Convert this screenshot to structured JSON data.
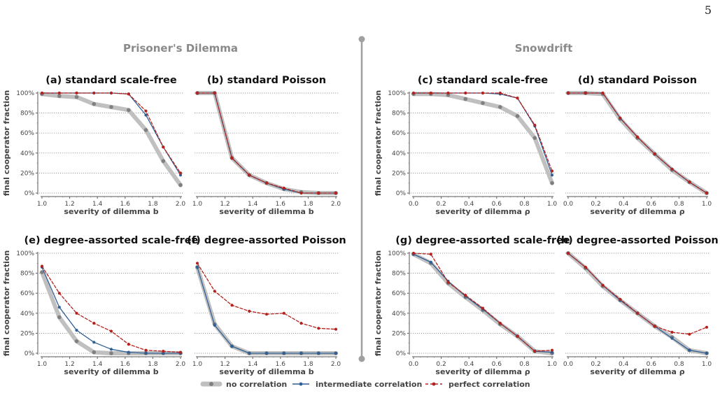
{
  "page_number": "5",
  "group_titles": [
    "Prisoner's Dilemma",
    "Snowdrift"
  ],
  "legend": {
    "no_correlation": "no correlation",
    "intermediate_correlation": "intermediate correlation",
    "perfect_correlation": "perfect correlation"
  },
  "colors": {
    "no_correlation": "#c0c0c0",
    "no_correlation_marker": "#808080",
    "intermediate_correlation": "#2e5f96",
    "perfect_correlation": "#b5221d",
    "divider": "#a0a0a0"
  },
  "chart_data": [
    {
      "id": "a",
      "type": "line",
      "title": "(a) standard scale-free",
      "xlabel": "severity of dilemma b",
      "ylabel": "final cooperator fraction",
      "xlim": [
        1.0,
        2.0
      ],
      "ylim": [
        0,
        100
      ],
      "xticks": [
        "1.0",
        "1.2",
        "1.4",
        "1.6",
        "1.8",
        "2.0"
      ],
      "yticks": [
        "0%",
        "20%",
        "40%",
        "60%",
        "80%",
        "100%"
      ],
      "grid": "horizontal",
      "x": [
        1.0,
        1.125,
        1.25,
        1.375,
        1.5,
        1.625,
        1.75,
        1.875,
        2.0
      ],
      "series": [
        {
          "key": "none",
          "values": [
            99,
            97,
            96,
            89,
            86,
            83,
            63,
            32,
            8
          ]
        },
        {
          "key": "intermediate",
          "values": [
            100,
            100,
            100,
            100,
            100,
            99,
            78,
            46,
            18
          ]
        },
        {
          "key": "perfect",
          "values": [
            100,
            100,
            100,
            100,
            100,
            99,
            82,
            46,
            20
          ]
        }
      ]
    },
    {
      "id": "b",
      "type": "line",
      "title": "(b) standard Poisson",
      "xlabel": "severity of dilemma b",
      "ylabel": "",
      "xlim": [
        1.0,
        2.0
      ],
      "ylim": [
        0,
        100
      ],
      "xticks": [
        "1.0",
        "1.2",
        "1.4",
        "1.6",
        "1.8",
        "2.0"
      ],
      "yticks": [],
      "grid": "horizontal",
      "x": [
        1.0,
        1.125,
        1.25,
        1.375,
        1.5,
        1.625,
        1.75,
        1.875,
        2.0
      ],
      "series": [
        {
          "key": "none",
          "values": [
            100,
            100,
            35,
            18,
            10,
            4,
            1,
            0,
            0
          ]
        },
        {
          "key": "intermediate",
          "values": [
            100,
            100,
            35,
            18,
            10,
            4,
            0,
            0,
            0
          ]
        },
        {
          "key": "perfect",
          "values": [
            100,
            100,
            35,
            18,
            10,
            5,
            0,
            0,
            0
          ]
        }
      ]
    },
    {
      "id": "c",
      "type": "line",
      "title": "(c) standard scale-free",
      "xlabel": "severity of dilemma ρ",
      "ylabel": "final cooperator fraction",
      "xlim": [
        0.0,
        1.0
      ],
      "ylim": [
        0,
        100
      ],
      "xticks": [
        "0.0",
        "0.2",
        "0.4",
        "0.6",
        "0.8",
        "1.0"
      ],
      "yticks": [
        "0%",
        "20%",
        "40%",
        "60%",
        "80%",
        "100%"
      ],
      "grid": "horizontal",
      "x": [
        0.0,
        0.125,
        0.25,
        0.375,
        0.5,
        0.625,
        0.75,
        0.875,
        1.0
      ],
      "series": [
        {
          "key": "none",
          "values": [
            99,
            99,
            98,
            94,
            90,
            86,
            77,
            55,
            10
          ]
        },
        {
          "key": "intermediate",
          "values": [
            100,
            100,
            100,
            100,
            100,
            99,
            95,
            67,
            18
          ]
        },
        {
          "key": "perfect",
          "values": [
            100,
            100,
            100,
            100,
            100,
            100,
            95,
            68,
            22
          ]
        }
      ]
    },
    {
      "id": "d",
      "type": "line",
      "title": "(d) standard Poisson",
      "xlabel": "severity of dilemma ρ",
      "ylabel": "",
      "xlim": [
        0.0,
        1.0
      ],
      "ylim": [
        0,
        100
      ],
      "xticks": [
        "0.0",
        "0.2",
        "0.4",
        "0.6",
        "0.8",
        "1.0"
      ],
      "yticks": [],
      "grid": "horizontal",
      "x": [
        0.0,
        0.125,
        0.25,
        0.375,
        0.5,
        0.625,
        0.75,
        0.875,
        1.0
      ],
      "series": [
        {
          "key": "none",
          "values": [
            100,
            100,
            99,
            74,
            55,
            39,
            23,
            11,
            0
          ]
        },
        {
          "key": "intermediate",
          "values": [
            100,
            100,
            100,
            75,
            56,
            39,
            24,
            11,
            0
          ]
        },
        {
          "key": "perfect",
          "values": [
            100,
            100,
            100,
            75,
            56,
            39,
            24,
            11,
            0
          ]
        }
      ]
    },
    {
      "id": "e",
      "type": "line",
      "title": "(e) degree-assorted scale-free",
      "xlabel": "severity of dilemma b",
      "ylabel": "final cooperator fraction",
      "xlim": [
        1.0,
        2.0
      ],
      "ylim": [
        0,
        100
      ],
      "xticks": [
        "1.0",
        "1.2",
        "1.4",
        "1.6",
        "1.8",
        "2.0"
      ],
      "yticks": [
        "0%",
        "20%",
        "40%",
        "60%",
        "80%",
        "100%"
      ],
      "grid": "horizontal",
      "x": [
        1.0,
        1.125,
        1.25,
        1.375,
        1.5,
        1.625,
        1.75,
        1.875,
        2.0
      ],
      "series": [
        {
          "key": "none",
          "values": [
            81,
            36,
            12,
            1,
            0,
            0,
            0,
            0,
            0
          ]
        },
        {
          "key": "intermediate",
          "values": [
            86,
            46,
            23,
            11,
            4,
            1,
            0,
            0,
            0
          ]
        },
        {
          "key": "perfect",
          "values": [
            87,
            60,
            40,
            30,
            22,
            9,
            3,
            2,
            1
          ]
        }
      ]
    },
    {
      "id": "f",
      "type": "line",
      "title": "(f) degree-assorted Poisson",
      "xlabel": "severity of dilemma b",
      "ylabel": "",
      "xlim": [
        1.0,
        2.0
      ],
      "ylim": [
        0,
        100
      ],
      "xticks": [
        "1.0",
        "1.2",
        "1.4",
        "1.6",
        "1.8",
        "2.0"
      ],
      "yticks": [],
      "grid": "horizontal",
      "x": [
        1.0,
        1.125,
        1.25,
        1.375,
        1.5,
        1.625,
        1.75,
        1.875,
        2.0
      ],
      "series": [
        {
          "key": "none",
          "values": [
            86,
            29,
            7,
            0,
            0,
            0,
            0,
            0,
            0
          ]
        },
        {
          "key": "intermediate",
          "values": [
            86,
            28,
            7,
            0,
            0,
            0,
            0,
            0,
            0
          ]
        },
        {
          "key": "perfect",
          "values": [
            90,
            62,
            48,
            42,
            39,
            40,
            30,
            25,
            24
          ]
        }
      ]
    },
    {
      "id": "g",
      "type": "line",
      "title": "(g) degree-assorted scale-free",
      "xlabel": "severity of dilemma ρ",
      "ylabel": "final cooperator fraction",
      "xlim": [
        0.0,
        1.0
      ],
      "ylim": [
        0,
        100
      ],
      "xticks": [
        "0.0",
        "0.2",
        "0.4",
        "0.6",
        "0.8",
        "1.0"
      ],
      "yticks": [
        "0%",
        "20%",
        "40%",
        "60%",
        "80%",
        "100%"
      ],
      "grid": "horizontal",
      "x": [
        0.0,
        0.125,
        0.25,
        0.375,
        0.5,
        0.625,
        0.75,
        0.875,
        1.0
      ],
      "series": [
        {
          "key": "none",
          "values": [
            99,
            90,
            70,
            56,
            43,
            29,
            17,
            2,
            0
          ]
        },
        {
          "key": "intermediate",
          "values": [
            99,
            91,
            72,
            57,
            44,
            30,
            17,
            2,
            1
          ]
        },
        {
          "key": "perfect",
          "values": [
            100,
            99,
            71,
            58,
            45,
            30,
            17,
            2,
            3
          ]
        }
      ]
    },
    {
      "id": "h",
      "type": "line",
      "title": "(h) degree-assorted Poisson",
      "xlabel": "severity of dilemma ρ",
      "ylabel": "",
      "xlim": [
        0.0,
        1.0
      ],
      "ylim": [
        0,
        100
      ],
      "xticks": [
        "0.0",
        "0.2",
        "0.4",
        "0.6",
        "0.8",
        "1.0"
      ],
      "yticks": [],
      "grid": "horizontal",
      "x": [
        0.0,
        0.125,
        0.25,
        0.375,
        0.5,
        0.625,
        0.75,
        0.875,
        1.0
      ],
      "series": [
        {
          "key": "none",
          "values": [
            100,
            85,
            67,
            53,
            40,
            27,
            16,
            3,
            0
          ]
        },
        {
          "key": "intermediate",
          "values": [
            100,
            86,
            68,
            53,
            40,
            27,
            15,
            3,
            0
          ]
        },
        {
          "key": "perfect",
          "values": [
            100,
            86,
            68,
            54,
            40,
            27,
            21,
            19,
            26
          ]
        }
      ]
    }
  ]
}
